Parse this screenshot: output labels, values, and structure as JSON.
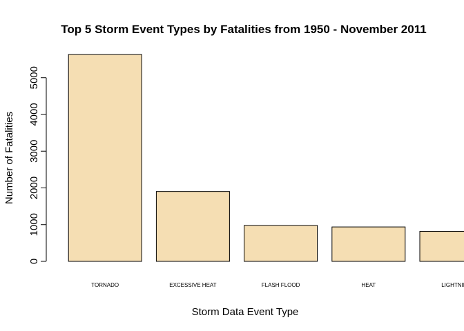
{
  "chart_data": {
    "type": "bar",
    "title": "Top 5 Storm Event Types by Fatalities from 1950 - November 2011",
    "xlabel": "Storm Data Event Type",
    "ylabel": "Number of Fatalities",
    "categories": [
      "TORNADO",
      "EXCESSIVE HEAT",
      "FLASH FLOOD",
      "HEAT",
      "LIGHTNING"
    ],
    "values": [
      5633,
      1903,
      978,
      937,
      816
    ],
    "ylim": [
      0,
      5633
    ],
    "yticks": [
      0,
      1000,
      2000,
      3000,
      4000,
      5000
    ],
    "bar_color": "#F5DEB3",
    "grid": false,
    "legend": "none"
  }
}
